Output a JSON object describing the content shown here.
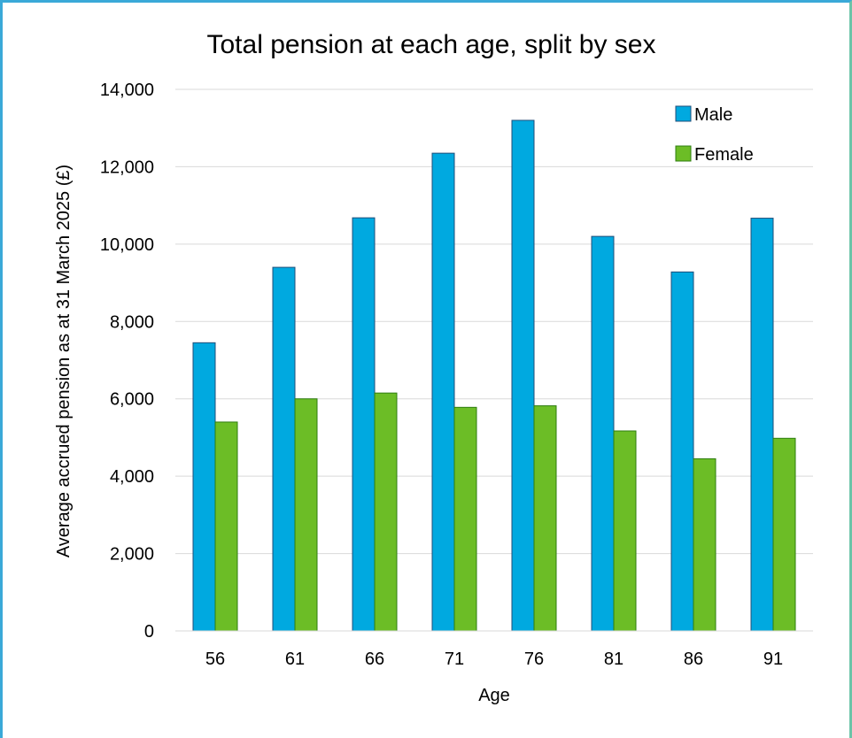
{
  "chart_data": {
    "type": "bar",
    "title": "Total pension at each age, split by sex",
    "xlabel": "Age",
    "ylabel": "Average accrued pension as at 31 March 2025 (£)",
    "categories": [
      "56",
      "61",
      "66",
      "71",
      "76",
      "81",
      "86",
      "91"
    ],
    "ylim": [
      0,
      14000
    ],
    "yticks": [
      "0",
      "2,000",
      "4,000",
      "6,000",
      "8,000",
      "10,000",
      "12,000",
      "14,000"
    ],
    "ytick_values": [
      0,
      2000,
      4000,
      6000,
      8000,
      10000,
      12000,
      14000
    ],
    "grid": true,
    "legend_position": "top-right",
    "series": [
      {
        "name": "Male",
        "color": "#00a9e0",
        "values": [
          7450,
          9400,
          10680,
          12350,
          13200,
          10200,
          9280,
          10670
        ]
      },
      {
        "name": "Female",
        "color": "#6cbd26",
        "values": [
          5400,
          6000,
          6150,
          5780,
          5820,
          5170,
          4450,
          4980
        ]
      }
    ]
  }
}
